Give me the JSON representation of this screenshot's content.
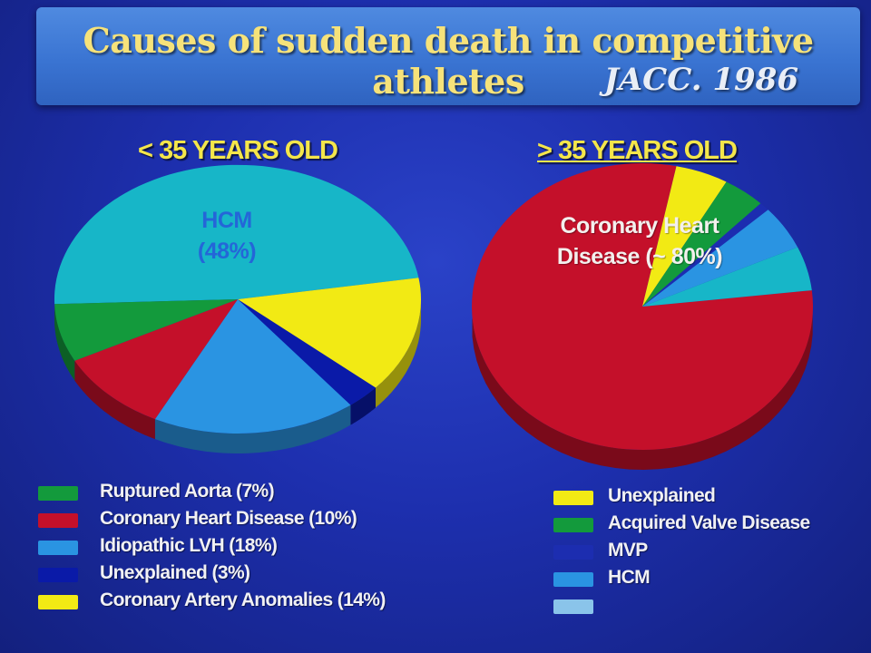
{
  "banner": {
    "title": "Causes of sudden death in competitive athletes",
    "subtitle": "JACC. 1986"
  },
  "chart_data": [
    {
      "type": "pie",
      "title": "< 35 YEARS OLD",
      "center_label": [
        "HCM",
        "(48%)"
      ],
      "slices": [
        {
          "name": "HCM",
          "value": 48,
          "color": "#17b6c8",
          "legend": "",
          "in_legend": false
        },
        {
          "name": "Coronary Artery Anomalies",
          "value": 14,
          "color": "#f2ea14",
          "legend": "Coronary Artery Anomalies (14%)",
          "in_legend": true
        },
        {
          "name": "Unexplained",
          "value": 3,
          "color": "#0a1aa8",
          "legend": "Unexplained (3%)",
          "in_legend": true
        },
        {
          "name": "Idiopathic LVH",
          "value": 18,
          "color": "#2a94e2",
          "legend": "Idiopathic LVH (18%)",
          "in_legend": true
        },
        {
          "name": "Coronary Heart Disease",
          "value": 10,
          "color": "#c4102a",
          "legend": "Coronary Heart Disease (10%)",
          "in_legend": true
        },
        {
          "name": "Ruptured Aorta",
          "value": 7,
          "color": "#139a3c",
          "legend": "Ruptured Aorta (7%)",
          "in_legend": true
        }
      ],
      "legend_order": [
        "Ruptured Aorta",
        "Coronary Heart Disease",
        "Idiopathic LVH",
        "Unexplained",
        "Coronary Artery Anomalies"
      ]
    },
    {
      "type": "pie",
      "title": "> 35 YEARS OLD",
      "center_label": [
        "Coronary Heart",
        "Disease (~ 80%)"
      ],
      "slices": [
        {
          "name": "Coronary Heart Disease",
          "value": 80,
          "color": "#c4102a",
          "legend": "",
          "in_legend": false
        },
        {
          "name": "Unexplained",
          "value": 5,
          "color": "#f2ea14",
          "legend": "Unexplained",
          "in_legend": true
        },
        {
          "name": "Acquired Valve Disease",
          "value": 4,
          "color": "#139a3c",
          "legend": "Acquired Valve Disease",
          "in_legend": true
        },
        {
          "name": "MVP",
          "value": 1,
          "color": "#1c2db0",
          "legend": "MVP",
          "in_legend": true
        },
        {
          "name": "HCM",
          "value": 5,
          "color": "#2a94e2",
          "legend": "HCM",
          "in_legend": true
        },
        {
          "name": "",
          "value": 5,
          "color": "#17b6c8",
          "legend": "",
          "in_legend": true
        }
      ],
      "legend_order": [
        "Unexplained",
        "Acquired Valve Disease",
        "MVP",
        "HCM",
        ""
      ],
      "legend_colors": [
        "#f2ea14",
        "#139a3c",
        "#1c2db0",
        "#2a94e2",
        "#8ac4ea"
      ]
    }
  ]
}
